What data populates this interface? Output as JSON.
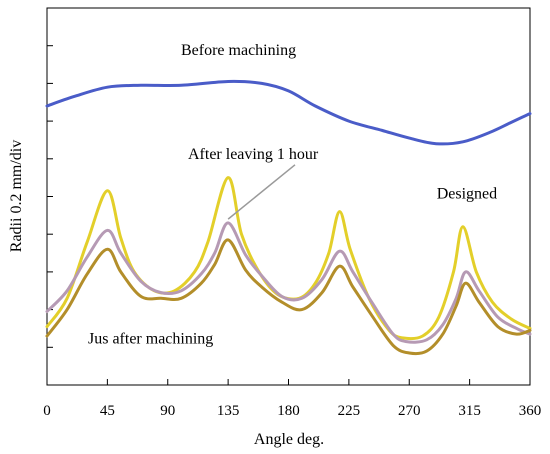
{
  "chart_data": {
    "type": "line",
    "title": "",
    "xlabel": "Angle deg.",
    "ylabel": "Radii 0.2 mm/div",
    "xlim": [
      0,
      360
    ],
    "ylim": [
      0,
      10
    ],
    "x_ticks": [
      0,
      45,
      90,
      135,
      180,
      225,
      270,
      315,
      360
    ],
    "y_tick_count": 10,
    "grid": false,
    "series": [
      {
        "name": "Before machining",
        "color": "#4a5cc8",
        "points": [
          [
            0,
            7.4
          ],
          [
            20,
            7.65
          ],
          [
            45,
            7.9
          ],
          [
            70,
            7.95
          ],
          [
            100,
            7.95
          ],
          [
            135,
            8.05
          ],
          [
            160,
            8.0
          ],
          [
            180,
            7.8
          ],
          [
            200,
            7.4
          ],
          [
            225,
            7.0
          ],
          [
            250,
            6.75
          ],
          [
            270,
            6.55
          ],
          [
            290,
            6.4
          ],
          [
            310,
            6.45
          ],
          [
            330,
            6.7
          ],
          [
            345,
            6.95
          ],
          [
            360,
            7.2
          ]
        ]
      },
      {
        "name": "Designed",
        "color": "#e3cf2a",
        "points": [
          [
            0,
            1.55
          ],
          [
            15,
            2.3
          ],
          [
            30,
            3.8
          ],
          [
            45,
            5.15
          ],
          [
            55,
            3.9
          ],
          [
            65,
            3.0
          ],
          [
            80,
            2.5
          ],
          [
            95,
            2.5
          ],
          [
            110,
            3.0
          ],
          [
            120,
            3.8
          ],
          [
            135,
            5.5
          ],
          [
            145,
            4.0
          ],
          [
            158,
            3.0
          ],
          [
            172,
            2.4
          ],
          [
            188,
            2.3
          ],
          [
            200,
            2.7
          ],
          [
            210,
            3.5
          ],
          [
            218,
            4.6
          ],
          [
            226,
            3.6
          ],
          [
            240,
            2.3
          ],
          [
            255,
            1.45
          ],
          [
            265,
            1.25
          ],
          [
            280,
            1.3
          ],
          [
            292,
            1.8
          ],
          [
            303,
            3.0
          ],
          [
            310,
            4.2
          ],
          [
            320,
            3.0
          ],
          [
            332,
            2.2
          ],
          [
            346,
            1.75
          ],
          [
            360,
            1.5
          ]
        ]
      },
      {
        "name": "After leaving 1 hour",
        "color": "#b69ab4",
        "points": [
          [
            0,
            1.95
          ],
          [
            15,
            2.5
          ],
          [
            30,
            3.4
          ],
          [
            45,
            4.1
          ],
          [
            55,
            3.5
          ],
          [
            70,
            2.75
          ],
          [
            85,
            2.45
          ],
          [
            100,
            2.5
          ],
          [
            115,
            2.95
          ],
          [
            125,
            3.5
          ],
          [
            135,
            4.3
          ],
          [
            148,
            3.45
          ],
          [
            160,
            2.9
          ],
          [
            175,
            2.35
          ],
          [
            190,
            2.3
          ],
          [
            205,
            2.8
          ],
          [
            218,
            3.55
          ],
          [
            228,
            3.0
          ],
          [
            242,
            2.2
          ],
          [
            258,
            1.35
          ],
          [
            268,
            1.15
          ],
          [
            283,
            1.2
          ],
          [
            295,
            1.6
          ],
          [
            305,
            2.3
          ],
          [
            312,
            3.0
          ],
          [
            322,
            2.5
          ],
          [
            336,
            1.8
          ],
          [
            350,
            1.5
          ],
          [
            360,
            1.35
          ]
        ]
      },
      {
        "name": "Jus after machining",
        "color": "#b38e2a",
        "points": [
          [
            0,
            1.3
          ],
          [
            15,
            2.0
          ],
          [
            30,
            2.95
          ],
          [
            45,
            3.6
          ],
          [
            55,
            3.0
          ],
          [
            70,
            2.35
          ],
          [
            85,
            2.3
          ],
          [
            100,
            2.3
          ],
          [
            115,
            2.7
          ],
          [
            125,
            3.2
          ],
          [
            135,
            3.85
          ],
          [
            148,
            3.05
          ],
          [
            160,
            2.6
          ],
          [
            175,
            2.2
          ],
          [
            190,
            2.0
          ],
          [
            205,
            2.45
          ],
          [
            218,
            3.15
          ],
          [
            228,
            2.6
          ],
          [
            242,
            1.85
          ],
          [
            258,
            1.05
          ],
          [
            270,
            0.85
          ],
          [
            283,
            0.9
          ],
          [
            295,
            1.35
          ],
          [
            305,
            2.1
          ],
          [
            312,
            2.7
          ],
          [
            322,
            2.2
          ],
          [
            336,
            1.55
          ],
          [
            350,
            1.35
          ],
          [
            360,
            1.45
          ]
        ]
      }
    ],
    "annotations": [
      {
        "text": "Before machining",
        "x": 135,
        "y": 8.75
      },
      {
        "text": "After leaving 1 hour",
        "x": 135,
        "y": 6.0,
        "leader_to": [
          135,
          4.4
        ]
      },
      {
        "text": "Designed",
        "x": 313,
        "y": 4.95
      },
      {
        "text": "Jus after machining",
        "x": 60,
        "y": 1.1
      }
    ]
  }
}
